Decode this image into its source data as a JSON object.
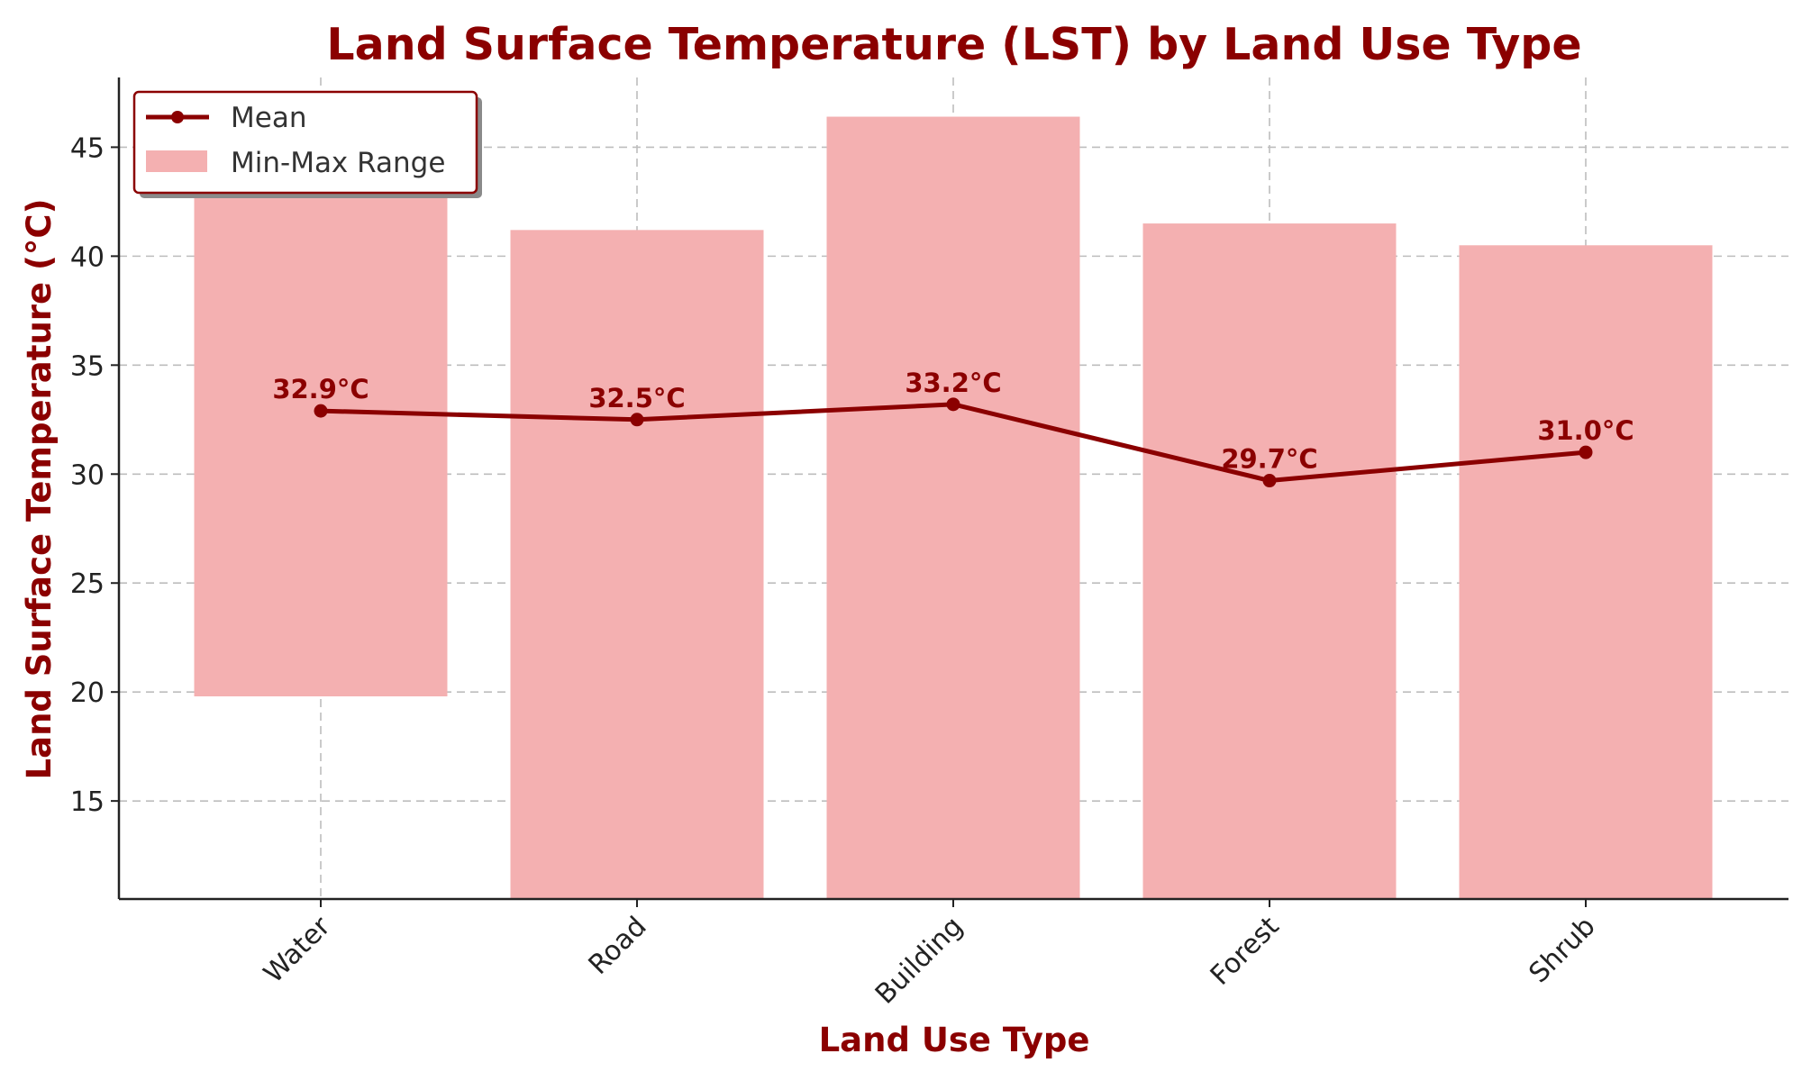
{
  "colors": {
    "accent": "#8b0000",
    "range_fill": "#f4b0b1",
    "grid": "#bdbdbd"
  },
  "chart_data": {
    "type": "bar",
    "title": "Land Surface Temperature (LST) by Land Use Type",
    "xlabel": "Land Use Type",
    "ylabel": "Land Surface Temperature (°C)",
    "categories": [
      "Water",
      "Road",
      "Building",
      "Forest",
      "Shrub"
    ],
    "ylim": [
      10.5,
      48.2
    ],
    "yticks": [
      15,
      20,
      25,
      30,
      35,
      40,
      45
    ],
    "grid": true,
    "legend_position": "top-left",
    "series": [
      {
        "name": "Mean",
        "type": "line",
        "values": [
          32.9,
          32.5,
          33.2,
          29.7,
          31.0
        ],
        "labels": [
          "32.9°C",
          "32.5°C",
          "33.2°C",
          "29.7°C",
          "31.0°C"
        ]
      },
      {
        "name": "Min-Max Range",
        "type": "range-bar",
        "min": [
          19.8,
          10.5,
          10.5,
          10.5,
          10.5
        ],
        "max": [
          44.0,
          41.2,
          46.4,
          41.5,
          40.5
        ]
      }
    ]
  }
}
